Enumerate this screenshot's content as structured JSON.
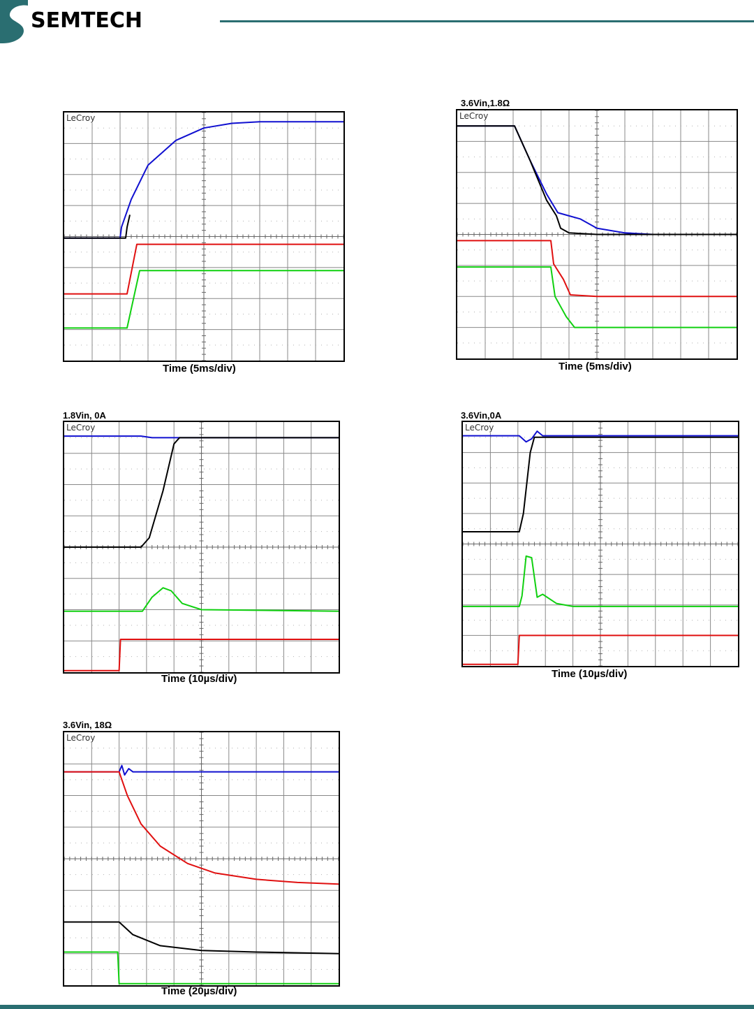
{
  "header": {
    "brand": "SEMTECH",
    "brand_color": "#2a6e71"
  },
  "colors": {
    "blue": "#1010d0",
    "black": "#000000",
    "red": "#e01010",
    "green": "#10d010",
    "marker": "#f0a020",
    "grid": "#888888"
  },
  "scopes": [
    {
      "id": "s1",
      "condition": "",
      "scope_label": "LeCroy",
      "time_label": "Time (5ms/div)",
      "chart_data": {
        "type": "line",
        "x_divs": 10,
        "y_divs": 8,
        "xlabel": "Time (5ms/div)",
        "series": [
          {
            "color": "blue",
            "points": [
              [
                0,
                3.95
              ],
              [
                2,
                3.95
              ],
              [
                2.05,
                4.3
              ],
              [
                2.4,
                5.2
              ],
              [
                3,
                6.3
              ],
              [
                4,
                7.1
              ],
              [
                5,
                7.5
              ],
              [
                6,
                7.65
              ],
              [
                7,
                7.7
              ],
              [
                10,
                7.7
              ]
            ]
          },
          {
            "color": "black",
            "points": [
              [
                0,
                3.95
              ],
              [
                2.2,
                3.95
              ],
              [
                2.25,
                4.3
              ],
              [
                2.35,
                4.7
              ]
            ]
          },
          {
            "color": "red",
            "points": [
              [
                0,
                2.15
              ],
              [
                2.25,
                2.15
              ],
              [
                2.6,
                3.75
              ],
              [
                10,
                3.75
              ]
            ]
          },
          {
            "color": "green",
            "points": [
              [
                0,
                1.05
              ],
              [
                2.25,
                1.05
              ],
              [
                2.7,
                2.9
              ],
              [
                10,
                2.9
              ]
            ]
          }
        ]
      }
    },
    {
      "id": "s2",
      "condition": "3.6Vin,1.8Ω",
      "scope_label": "LeCroy",
      "time_label": "Time (5ms/div)",
      "chart_data": {
        "type": "line",
        "x_divs": 10,
        "y_divs": 8,
        "xlabel": "Time (5ms/div)",
        "series": [
          {
            "color": "blue",
            "points": [
              [
                0,
                7.5
              ],
              [
                2.05,
                7.5
              ],
              [
                2.6,
                6.4
              ],
              [
                3.2,
                5.3
              ],
              [
                3.6,
                4.7
              ],
              [
                4,
                4.6
              ],
              [
                4.4,
                4.5
              ],
              [
                5,
                4.2
              ],
              [
                6,
                4.05
              ],
              [
                7,
                4.0
              ],
              [
                10,
                4.0
              ]
            ]
          },
          {
            "color": "black",
            "points": [
              [
                0,
                7.5
              ],
              [
                2.05,
                7.5
              ],
              [
                2.6,
                6.4
              ],
              [
                3.2,
                5.1
              ],
              [
                3.55,
                4.6
              ],
              [
                3.7,
                4.2
              ],
              [
                4,
                4.05
              ],
              [
                5,
                4.0
              ],
              [
                10,
                4.0
              ]
            ]
          },
          {
            "color": "red",
            "points": [
              [
                0,
                3.8
              ],
              [
                3.35,
                3.8
              ],
              [
                3.45,
                3.05
              ],
              [
                3.8,
                2.55
              ],
              [
                4.05,
                2.05
              ],
              [
                5,
                2.0
              ],
              [
                10,
                2.0
              ]
            ]
          },
          {
            "color": "green",
            "points": [
              [
                0,
                2.95
              ],
              [
                3.35,
                2.95
              ],
              [
                3.5,
                2.0
              ],
              [
                3.9,
                1.35
              ],
              [
                4.2,
                1.0
              ],
              [
                10,
                1.0
              ]
            ]
          }
        ]
      }
    },
    {
      "id": "s3",
      "condition": "1.8Vin, 0A",
      "scope_label": "LeCroy",
      "time_label": "Time (10µs/div)",
      "chart_data": {
        "type": "line",
        "x_divs": 10,
        "y_divs": 8,
        "xlabel": "Time (10µs/div)",
        "series": [
          {
            "color": "blue",
            "points": [
              [
                0,
                7.55
              ],
              [
                2.8,
                7.55
              ],
              [
                3.2,
                7.5
              ],
              [
                4.2,
                7.5
              ],
              [
                10,
                7.5
              ]
            ]
          },
          {
            "color": "black",
            "points": [
              [
                0,
                4.0
              ],
              [
                2.8,
                4.0
              ],
              [
                3.1,
                4.3
              ],
              [
                3.6,
                5.8
              ],
              [
                4.0,
                7.3
              ],
              [
                4.2,
                7.5
              ],
              [
                10,
                7.5
              ]
            ]
          },
          {
            "color": "green",
            "points": [
              [
                0,
                1.95
              ],
              [
                2.85,
                1.95
              ],
              [
                3.2,
                2.4
              ],
              [
                3.6,
                2.7
              ],
              [
                3.9,
                2.6
              ],
              [
                4.3,
                2.2
              ],
              [
                5,
                2.0
              ],
              [
                10,
                1.95
              ]
            ]
          },
          {
            "color": "red",
            "points": [
              [
                0,
                0.05
              ],
              [
                2,
                0.05
              ],
              [
                2.05,
                1.05
              ],
              [
                10,
                1.05
              ]
            ]
          }
        ]
      }
    },
    {
      "id": "s4",
      "condition": "3.6Vin,0A",
      "scope_label": "LeCroy",
      "time_label": "Time (10µs/div)",
      "chart_data": {
        "type": "line",
        "x_divs": 10,
        "y_divs": 8,
        "xlabel": "Time (10µs/div)",
        "series": [
          {
            "color": "blue",
            "points": [
              [
                0,
                7.55
              ],
              [
                2.05,
                7.55
              ],
              [
                2.3,
                7.35
              ],
              [
                2.5,
                7.45
              ],
              [
                2.7,
                7.7
              ],
              [
                2.9,
                7.55
              ],
              [
                10,
                7.55
              ]
            ]
          },
          {
            "color": "black",
            "points": [
              [
                0,
                4.4
              ],
              [
                2.05,
                4.4
              ],
              [
                2.2,
                5.0
              ],
              [
                2.45,
                7.0
              ],
              [
                2.6,
                7.5
              ],
              [
                10,
                7.5
              ]
            ]
          },
          {
            "color": "green",
            "points": [
              [
                0,
                1.95
              ],
              [
                2.05,
                1.95
              ],
              [
                2.15,
                2.3
              ],
              [
                2.3,
                3.6
              ],
              [
                2.5,
                3.55
              ],
              [
                2.7,
                2.25
              ],
              [
                2.9,
                2.35
              ],
              [
                3.4,
                2.05
              ],
              [
                4,
                1.95
              ],
              [
                10,
                1.95
              ]
            ]
          },
          {
            "color": "red",
            "points": [
              [
                0,
                0.05
              ],
              [
                2.0,
                0.05
              ],
              [
                2.05,
                1.0
              ],
              [
                10,
                1.0
              ]
            ]
          }
        ]
      }
    },
    {
      "id": "s5",
      "condition": "3.6Vin, 18Ω",
      "scope_label": "LeCroy",
      "time_label": "Time (20µs/div)",
      "chart_data": {
        "type": "line",
        "x_divs": 10,
        "y_divs": 8,
        "xlabel": "Time (20µs/div)",
        "series": [
          {
            "color": "blue",
            "points": [
              [
                0,
                6.75
              ],
              [
                2.0,
                6.75
              ],
              [
                2.1,
                6.95
              ],
              [
                2.2,
                6.65
              ],
              [
                2.35,
                6.85
              ],
              [
                2.5,
                6.75
              ],
              [
                10,
                6.75
              ]
            ]
          },
          {
            "color": "red",
            "points": [
              [
                0,
                6.75
              ],
              [
                2.0,
                6.75
              ],
              [
                2.3,
                6.0
              ],
              [
                2.8,
                5.1
              ],
              [
                3.5,
                4.4
              ],
              [
                4.5,
                3.85
              ],
              [
                5.5,
                3.55
              ],
              [
                7,
                3.35
              ],
              [
                8.5,
                3.25
              ],
              [
                10,
                3.2
              ]
            ]
          },
          {
            "color": "black",
            "points": [
              [
                0,
                2.0
              ],
              [
                2.0,
                2.0
              ],
              [
                2.5,
                1.6
              ],
              [
                3.5,
                1.25
              ],
              [
                5,
                1.1
              ],
              [
                7,
                1.05
              ],
              [
                10,
                1.0
              ]
            ]
          },
          {
            "color": "green",
            "points": [
              [
                0,
                1.05
              ],
              [
                1.95,
                1.05
              ],
              [
                2.0,
                0.05
              ],
              [
                10,
                0.05
              ]
            ]
          }
        ]
      }
    }
  ]
}
